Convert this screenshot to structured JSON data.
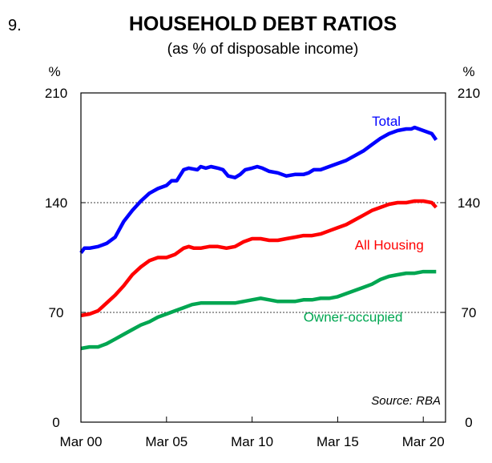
{
  "chart_data": {
    "type": "line",
    "figure_number": "9.",
    "title": "HOUSEHOLD DEBT RATIOS",
    "subtitle": "(as % of disposable income)",
    "y_unit_left": "%",
    "y_unit_right": "%",
    "ylim": [
      0,
      210
    ],
    "yticks": [
      0,
      70,
      140,
      210
    ],
    "xlim": [
      2000.0,
      2020.75
    ],
    "xticks": [
      {
        "x": 2000,
        "label": "Mar 00"
      },
      {
        "x": 2005,
        "label": "Mar 05"
      },
      {
        "x": 2010,
        "label": "Mar 10"
      },
      {
        "x": 2015,
        "label": "Mar 15"
      },
      {
        "x": 2020,
        "label": "Mar 20"
      }
    ],
    "grid": {
      "horizontal": true,
      "style": "dotted"
    },
    "source": "Source: RBA",
    "series": [
      {
        "name": "Total",
        "color": "#0000ff",
        "x": [
          2000.0,
          2000.2,
          2000.5,
          2001.0,
          2001.5,
          2002.0,
          2002.5,
          2003.0,
          2003.5,
          2004.0,
          2004.5,
          2005.0,
          2005.3,
          2005.6,
          2006.0,
          2006.3,
          2006.8,
          2007.0,
          2007.3,
          2007.6,
          2008.0,
          2008.3,
          2008.6,
          2009.0,
          2009.3,
          2009.6,
          2010.0,
          2010.3,
          2010.6,
          2011.0,
          2011.5,
          2012.0,
          2012.5,
          2013.0,
          2013.3,
          2013.6,
          2014.0,
          2014.5,
          2015.0,
          2015.5,
          2016.0,
          2016.5,
          2017.0,
          2017.5,
          2018.0,
          2018.5,
          2019.0,
          2019.3,
          2019.5,
          2020.0,
          2020.5,
          2020.75
        ],
        "values": [
          108,
          111,
          111,
          112,
          114,
          118,
          128,
          135,
          141,
          146,
          149,
          151,
          154,
          154,
          161,
          162,
          161,
          163,
          162,
          163,
          162,
          161,
          157,
          156,
          158,
          161,
          162,
          163,
          162,
          160,
          159,
          157,
          158,
          158,
          159,
          161,
          161,
          163,
          165,
          167,
          170,
          173,
          177,
          181,
          184,
          186,
          187,
          187,
          188,
          186,
          184,
          180
        ]
      },
      {
        "name": "All Housing",
        "color": "#ff0000",
        "x": [
          2000.0,
          2000.5,
          2001.0,
          2001.5,
          2002.0,
          2002.5,
          2003.0,
          2003.5,
          2004.0,
          2004.5,
          2005.0,
          2005.5,
          2006.0,
          2006.3,
          2006.6,
          2007.0,
          2007.5,
          2008.0,
          2008.5,
          2009.0,
          2009.5,
          2010.0,
          2010.5,
          2011.0,
          2011.5,
          2012.0,
          2012.5,
          2013.0,
          2013.5,
          2014.0,
          2014.5,
          2015.0,
          2015.5,
          2016.0,
          2016.5,
          2017.0,
          2017.5,
          2018.0,
          2018.5,
          2019.0,
          2019.5,
          2020.0,
          2020.5,
          2020.75
        ],
        "values": [
          68,
          69,
          71,
          76,
          81,
          87,
          94,
          99,
          103,
          105,
          105,
          107,
          111,
          112,
          111,
          111,
          112,
          112,
          111,
          112,
          115,
          117,
          117,
          116,
          116,
          117,
          118,
          119,
          119,
          120,
          122,
          124,
          126,
          129,
          132,
          135,
          137,
          139,
          140,
          140,
          141,
          141,
          140,
          137
        ]
      },
      {
        "name": "Owner-occupied",
        "color": "#00a651",
        "x": [
          2000.0,
          2000.5,
          2001.0,
          2001.5,
          2002.0,
          2002.5,
          2003.0,
          2003.5,
          2004.0,
          2004.5,
          2005.0,
          2005.5,
          2006.0,
          2006.5,
          2007.0,
          2007.5,
          2008.0,
          2008.5,
          2009.0,
          2009.5,
          2010.0,
          2010.5,
          2011.0,
          2011.5,
          2012.0,
          2012.5,
          2013.0,
          2013.5,
          2014.0,
          2014.5,
          2015.0,
          2015.5,
          2016.0,
          2016.5,
          2017.0,
          2017.5,
          2018.0,
          2018.5,
          2019.0,
          2019.5,
          2020.0,
          2020.5,
          2020.75
        ],
        "values": [
          47,
          48,
          48,
          50,
          53,
          56,
          59,
          62,
          64,
          67,
          69,
          71,
          73,
          75,
          76,
          76,
          76,
          76,
          76,
          77,
          78,
          79,
          78,
          77,
          77,
          77,
          78,
          78,
          79,
          79,
          80,
          82,
          84,
          86,
          88,
          91,
          93,
          94,
          95,
          95,
          96,
          96,
          96
        ]
      }
    ],
    "annotations": [
      {
        "text": "Total",
        "series": "Total",
        "x": 2017.0,
        "y": 189
      },
      {
        "text": "All Housing",
        "series": "All Housing",
        "x": 2016.0,
        "y": 110
      },
      {
        "text": "Owner-occupied",
        "series": "Owner-occupied",
        "x": 2013.0,
        "y": 64
      }
    ]
  }
}
